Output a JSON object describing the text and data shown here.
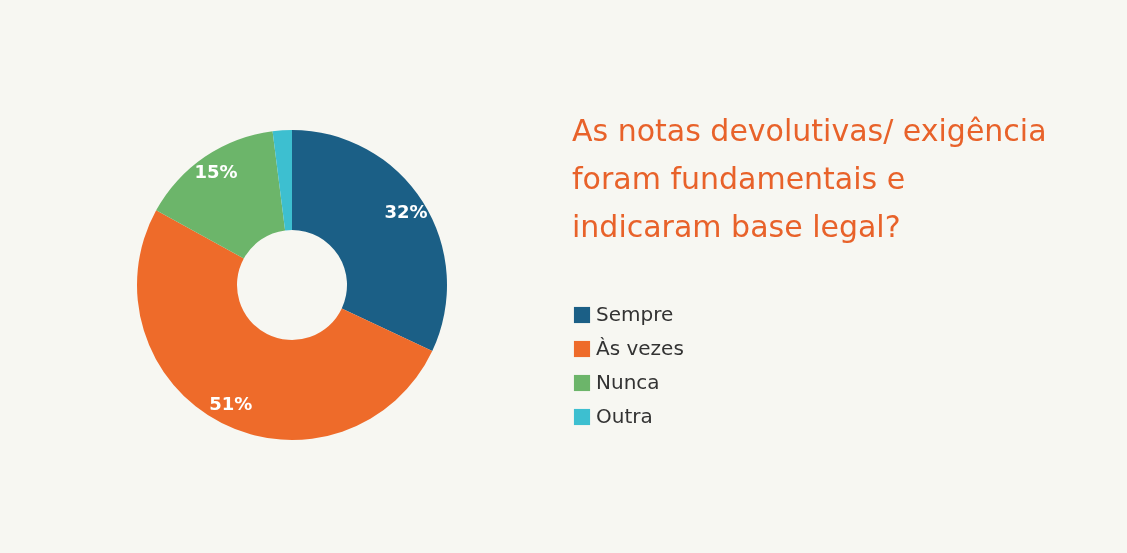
{
  "chart_data": {
    "type": "donut",
    "title": "As notas devolutivas/ exigência\nforam fundamentais e\nindicaram base legal?",
    "categories": [
      "Sempre",
      "Às vezes",
      "Nunca",
      "Outra"
    ],
    "values": [
      32,
      51,
      15,
      2
    ],
    "colors": [
      "#1b5f86",
      "#ee6b2a",
      "#6cb56a",
      "#3dbfd0"
    ],
    "value_labels": [
      "32%",
      "51%",
      "15%",
      null
    ],
    "legend": "right"
  }
}
